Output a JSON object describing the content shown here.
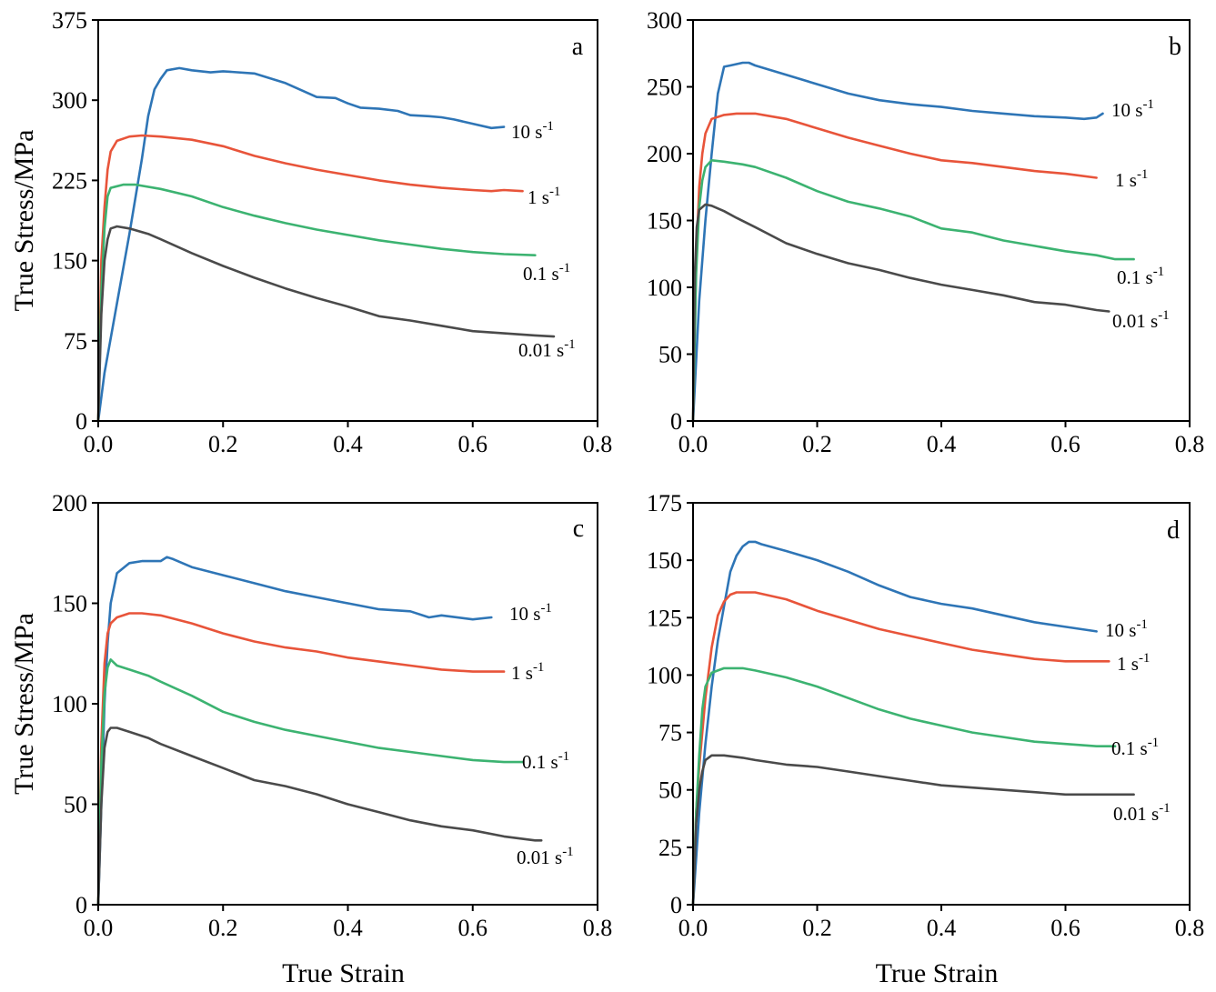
{
  "chart_data": [
    {
      "type": "line",
      "panel_label": "a",
      "xlabel": "",
      "ylabel": "True Stress/MPa",
      "xlim": [
        0,
        0.8
      ],
      "ylim": [
        0,
        375
      ],
      "xticks": [
        "0.0",
        "0.2",
        "0.4",
        "0.6",
        "0.8"
      ],
      "yticks": [
        "0",
        "75",
        "150",
        "225",
        "300",
        "375"
      ],
      "grid": false,
      "series": [
        {
          "name": "10 s-1",
          "label_main": "10 s",
          "label_sup": "-1",
          "color": "#2e75b6",
          "x": [
            0,
            0.01,
            0.03,
            0.05,
            0.07,
            0.08,
            0.09,
            0.1,
            0.11,
            0.13,
            0.15,
            0.18,
            0.2,
            0.25,
            0.3,
            0.35,
            0.38,
            0.4,
            0.42,
            0.45,
            0.48,
            0.5,
            0.53,
            0.55,
            0.57,
            0.6,
            0.63,
            0.65
          ],
          "y": [
            0,
            45,
            110,
            175,
            245,
            285,
            310,
            320,
            328,
            330,
            328,
            326,
            327,
            325,
            316,
            303,
            302,
            297,
            293,
            292,
            290,
            286,
            285,
            284,
            282,
            278,
            274,
            275
          ]
        },
        {
          "name": "1 s-1",
          "label_main": "1 s",
          "label_sup": "-1",
          "color": "#e8543a",
          "x": [
            0,
            0.005,
            0.01,
            0.015,
            0.02,
            0.03,
            0.05,
            0.07,
            0.1,
            0.15,
            0.2,
            0.25,
            0.3,
            0.35,
            0.4,
            0.45,
            0.5,
            0.55,
            0.6,
            0.63,
            0.65,
            0.68
          ],
          "y": [
            0,
            150,
            200,
            235,
            252,
            262,
            266,
            267,
            266,
            263,
            257,
            248,
            241,
            235,
            230,
            225,
            221,
            218,
            216,
            215,
            216,
            215
          ]
        },
        {
          "name": "0.1 s-1",
          "label_main": "0.1 s",
          "label_sup": "-1",
          "color": "#3cb371",
          "x": [
            0,
            0.005,
            0.01,
            0.015,
            0.02,
            0.04,
            0.06,
            0.1,
            0.15,
            0.2,
            0.25,
            0.3,
            0.35,
            0.4,
            0.45,
            0.5,
            0.55,
            0.6,
            0.65,
            0.7
          ],
          "y": [
            0,
            120,
            180,
            210,
            218,
            221,
            221,
            217,
            210,
            200,
            192,
            185,
            179,
            174,
            169,
            165,
            161,
            158,
            156,
            155
          ]
        },
        {
          "name": "0.01 s-1",
          "label_main": "0.01 s",
          "label_sup": "-1",
          "color": "#4a4a4a",
          "x": [
            0,
            0.005,
            0.01,
            0.015,
            0.02,
            0.03,
            0.05,
            0.08,
            0.1,
            0.15,
            0.2,
            0.25,
            0.3,
            0.35,
            0.4,
            0.45,
            0.5,
            0.55,
            0.6,
            0.65,
            0.7,
            0.73
          ],
          "y": [
            0,
            100,
            150,
            170,
            180,
            182,
            180,
            175,
            170,
            157,
            145,
            134,
            124,
            115,
            107,
            98,
            94,
            89,
            84,
            82,
            80,
            79
          ]
        }
      ]
    },
    {
      "type": "line",
      "panel_label": "b",
      "xlabel": "",
      "ylabel": "",
      "xlim": [
        0,
        0.8
      ],
      "ylim": [
        0,
        300
      ],
      "xticks": [
        "0.0",
        "0.2",
        "0.4",
        "0.6",
        "0.8"
      ],
      "yticks": [
        "0",
        "50",
        "100",
        "150",
        "200",
        "250",
        "300"
      ],
      "grid": false,
      "series": [
        {
          "name": "10 s-1",
          "label_main": "10 s",
          "label_sup": "-1",
          "color": "#2e75b6",
          "x": [
            0,
            0.01,
            0.02,
            0.03,
            0.04,
            0.05,
            0.06,
            0.07,
            0.08,
            0.09,
            0.1,
            0.15,
            0.2,
            0.25,
            0.3,
            0.35,
            0.4,
            0.45,
            0.5,
            0.55,
            0.6,
            0.63,
            0.65,
            0.66
          ],
          "y": [
            0,
            90,
            150,
            200,
            245,
            265,
            266,
            267,
            268,
            268,
            266,
            259,
            252,
            245,
            240,
            237,
            235,
            232,
            230,
            228,
            227,
            226,
            227,
            230
          ]
        },
        {
          "name": "1 s-1",
          "label_main": "1 s",
          "label_sup": "-1",
          "color": "#e8543a",
          "x": [
            0,
            0.005,
            0.01,
            0.015,
            0.02,
            0.03,
            0.05,
            0.07,
            0.1,
            0.15,
            0.2,
            0.25,
            0.3,
            0.35,
            0.4,
            0.45,
            0.5,
            0.55,
            0.6,
            0.65
          ],
          "y": [
            0,
            120,
            175,
            200,
            215,
            226,
            229,
            230,
            230,
            226,
            219,
            212,
            206,
            200,
            195,
            193,
            190,
            187,
            185,
            182
          ]
        },
        {
          "name": "0.1 s-1",
          "label_main": "0.1 s",
          "label_sup": "-1",
          "color": "#3cb371",
          "x": [
            0,
            0.005,
            0.01,
            0.015,
            0.02,
            0.03,
            0.05,
            0.08,
            0.1,
            0.15,
            0.2,
            0.25,
            0.3,
            0.35,
            0.4,
            0.45,
            0.5,
            0.55,
            0.6,
            0.65,
            0.68,
            0.71
          ],
          "y": [
            0,
            110,
            160,
            180,
            190,
            195,
            194,
            192,
            190,
            182,
            172,
            164,
            159,
            153,
            144,
            141,
            135,
            131,
            127,
            124,
            121,
            121
          ]
        },
        {
          "name": "0.01 s-1",
          "label_main": "0.01 s",
          "label_sup": "-1",
          "color": "#4a4a4a",
          "x": [
            0,
            0.003,
            0.006,
            0.01,
            0.02,
            0.03,
            0.05,
            0.07,
            0.1,
            0.15,
            0.2,
            0.25,
            0.3,
            0.35,
            0.4,
            0.45,
            0.5,
            0.55,
            0.6,
            0.65,
            0.67
          ],
          "y": [
            0,
            110,
            145,
            158,
            162,
            161,
            157,
            152,
            145,
            133,
            125,
            118,
            113,
            107,
            102,
            98,
            94,
            89,
            87,
            83,
            82
          ]
        }
      ]
    },
    {
      "type": "line",
      "panel_label": "c",
      "xlabel": "True Strain",
      "ylabel": "True Stress/MPa",
      "xlim": [
        0,
        0.8
      ],
      "ylim": [
        0,
        200
      ],
      "xticks": [
        "0.0",
        "0.2",
        "0.4",
        "0.6",
        "0.8"
      ],
      "yticks": [
        "0",
        "50",
        "100",
        "150",
        "200"
      ],
      "grid": false,
      "series": [
        {
          "name": "10 s-1",
          "label_main": "10 s",
          "label_sup": "-1",
          "color": "#2e75b6",
          "x": [
            0,
            0.005,
            0.01,
            0.015,
            0.02,
            0.03,
            0.05,
            0.07,
            0.1,
            0.11,
            0.12,
            0.15,
            0.2,
            0.25,
            0.3,
            0.35,
            0.4,
            0.45,
            0.5,
            0.53,
            0.55,
            0.6,
            0.63
          ],
          "y": [
            0,
            50,
            100,
            130,
            150,
            165,
            170,
            171,
            171,
            173,
            172,
            168,
            164,
            160,
            156,
            153,
            150,
            147,
            146,
            143,
            144,
            142,
            143
          ]
        },
        {
          "name": "1 s-1",
          "label_main": "1 s",
          "label_sup": "-1",
          "color": "#e8543a",
          "x": [
            0,
            0.005,
            0.01,
            0.015,
            0.02,
            0.03,
            0.05,
            0.07,
            0.1,
            0.15,
            0.2,
            0.25,
            0.3,
            0.35,
            0.4,
            0.45,
            0.5,
            0.55,
            0.6,
            0.65
          ],
          "y": [
            0,
            80,
            120,
            135,
            140,
            143,
            145,
            145,
            144,
            140,
            135,
            131,
            128,
            126,
            123,
            121,
            119,
            117,
            116,
            116
          ]
        },
        {
          "name": "0.1 s-1",
          "label_main": "0.1 s",
          "label_sup": "-1",
          "color": "#3cb371",
          "x": [
            0,
            0.005,
            0.01,
            0.015,
            0.02,
            0.03,
            0.05,
            0.08,
            0.1,
            0.15,
            0.2,
            0.25,
            0.3,
            0.35,
            0.4,
            0.45,
            0.5,
            0.55,
            0.6,
            0.65,
            0.68
          ],
          "y": [
            0,
            70,
            105,
            118,
            122,
            119,
            117,
            114,
            111,
            104,
            96,
            91,
            87,
            84,
            81,
            78,
            76,
            74,
            72,
            71,
            71
          ]
        },
        {
          "name": "0.01 s-1",
          "label_main": "0.01 s",
          "label_sup": "-1",
          "color": "#4a4a4a",
          "x": [
            0,
            0.005,
            0.01,
            0.015,
            0.02,
            0.03,
            0.05,
            0.08,
            0.1,
            0.15,
            0.2,
            0.25,
            0.3,
            0.35,
            0.4,
            0.45,
            0.5,
            0.55,
            0.6,
            0.65,
            0.7,
            0.71
          ],
          "y": [
            0,
            50,
            78,
            86,
            88,
            88,
            86,
            83,
            80,
            74,
            68,
            62,
            59,
            55,
            50,
            46,
            42,
            39,
            37,
            34,
            32,
            32
          ]
        }
      ]
    },
    {
      "type": "line",
      "panel_label": "d",
      "xlabel": "True Strain",
      "ylabel": "",
      "xlim": [
        0,
        0.8
      ],
      "ylim": [
        0,
        175
      ],
      "xticks": [
        "0.0",
        "0.2",
        "0.4",
        "0.6",
        "0.8"
      ],
      "yticks": [
        "0",
        "25",
        "50",
        "75",
        "100",
        "125",
        "150",
        "175"
      ],
      "grid": false,
      "series": [
        {
          "name": "10 s-1",
          "label_main": "10 s",
          "label_sup": "-1",
          "color": "#2e75b6",
          "x": [
            0,
            0.01,
            0.02,
            0.03,
            0.04,
            0.05,
            0.06,
            0.07,
            0.08,
            0.09,
            0.1,
            0.11,
            0.15,
            0.2,
            0.25,
            0.3,
            0.35,
            0.4,
            0.45,
            0.5,
            0.55,
            0.6,
            0.65
          ],
          "y": [
            0,
            40,
            70,
            95,
            115,
            130,
            145,
            152,
            156,
            158,
            158,
            157,
            154,
            150,
            145,
            139,
            134,
            131,
            129,
            126,
            123,
            121,
            119
          ]
        },
        {
          "name": "1 s-1",
          "label_main": "1 s",
          "label_sup": "-1",
          "color": "#e8543a",
          "x": [
            0,
            0.005,
            0.01,
            0.02,
            0.03,
            0.04,
            0.05,
            0.06,
            0.07,
            0.1,
            0.15,
            0.2,
            0.25,
            0.3,
            0.35,
            0.4,
            0.45,
            0.5,
            0.55,
            0.6,
            0.65,
            0.67
          ],
          "y": [
            0,
            40,
            60,
            90,
            112,
            126,
            132,
            135,
            136,
            136,
            133,
            128,
            124,
            120,
            117,
            114,
            111,
            109,
            107,
            106,
            106,
            106
          ]
        },
        {
          "name": "0.1 s-1",
          "label_main": "0.1 s",
          "label_sup": "-1",
          "color": "#3cb371",
          "x": [
            0,
            0.005,
            0.01,
            0.015,
            0.02,
            0.03,
            0.05,
            0.08,
            0.1,
            0.15,
            0.2,
            0.25,
            0.3,
            0.35,
            0.4,
            0.45,
            0.5,
            0.55,
            0.6,
            0.65,
            0.68
          ],
          "y": [
            0,
            40,
            65,
            85,
            95,
            101,
            103,
            103,
            102,
            99,
            95,
            90,
            85,
            81,
            78,
            75,
            73,
            71,
            70,
            69,
            69
          ]
        },
        {
          "name": "0.01 s-1",
          "label_main": "0.01 s",
          "label_sup": "-1",
          "color": "#4a4a4a",
          "x": [
            0,
            0.005,
            0.01,
            0.015,
            0.02,
            0.03,
            0.05,
            0.08,
            0.1,
            0.15,
            0.2,
            0.25,
            0.3,
            0.35,
            0.4,
            0.45,
            0.5,
            0.55,
            0.6,
            0.65,
            0.7,
            0.71
          ],
          "y": [
            0,
            35,
            50,
            58,
            63,
            65,
            65,
            64,
            63,
            61,
            60,
            58,
            56,
            54,
            52,
            51,
            50,
            49,
            48,
            48,
            48,
            48
          ]
        }
      ]
    }
  ]
}
